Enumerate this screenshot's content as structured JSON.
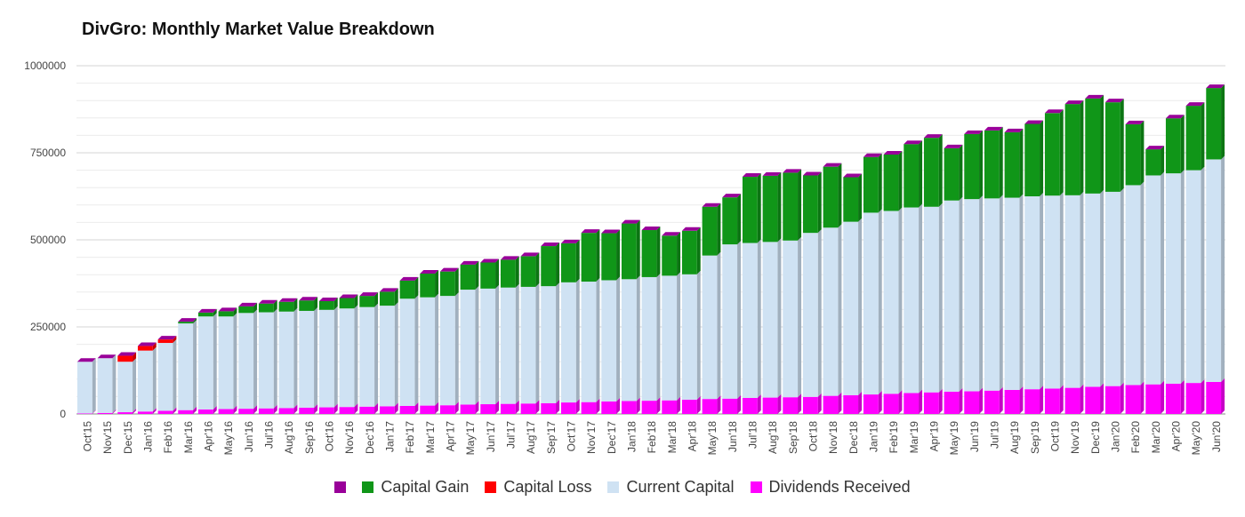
{
  "chart_data": {
    "type": "bar",
    "stacked": true,
    "title": "DivGro: Monthly Market Value Breakdown",
    "xlabel": "",
    "ylabel": "",
    "ylim": [
      0,
      1000000
    ],
    "yticks": [
      0,
      250000,
      500000,
      750000,
      1000000
    ],
    "ytick_labels": [
      "0",
      "250000",
      "500000",
      "750000",
      "1000000"
    ],
    "grid": true,
    "legend_position": "bottom",
    "categories": [
      "Oct'15",
      "Nov'15",
      "Dec'15",
      "Jan'16",
      "Feb'16",
      "Mar'16",
      "Apr'16",
      "May'16",
      "Jun'16",
      "Jul'16",
      "Aug'16",
      "Sep'16",
      "Oct'16",
      "Nov'16",
      "Dec'16",
      "Jan'17",
      "Feb'17",
      "Mar'17",
      "Apr'17",
      "May'17",
      "Jun'17",
      "Jul'17",
      "Aug'17",
      "Sep'17",
      "Oct'17",
      "Nov'17",
      "Dec'17",
      "Jan'18",
      "Feb'18",
      "Mar'18",
      "Apr'18",
      "May'18",
      "Jun'18",
      "Jul'18",
      "Aug'18",
      "Sep'18",
      "Oct'18",
      "Nov'18",
      "Dec'18",
      "Jan'19",
      "Feb'19",
      "Mar'19",
      "Apr'19",
      "May'19",
      "Jun'19",
      "Jul'19",
      "Aug'19",
      "Sep'19",
      "Oct'19",
      "Nov'19",
      "Dec'19",
      "Jan'20",
      "Feb'20",
      "Mar'20",
      "Apr'20",
      "May'20",
      "Jun'20"
    ],
    "series": [
      {
        "name": "Dividends Received",
        "color": "#ff00ff",
        "values": [
          1500,
          3000,
          5000,
          7000,
          9000,
          11000,
          13000,
          14000,
          15000,
          16000,
          17000,
          18000,
          19000,
          20000,
          21000,
          22000,
          23000,
          24000,
          25000,
          27000,
          28000,
          29000,
          30000,
          31000,
          33000,
          34000,
          36000,
          37000,
          38000,
          39000,
          41000,
          43000,
          44000,
          46000,
          47000,
          48000,
          49000,
          52000,
          54000,
          56000,
          58000,
          60000,
          62000,
          64000,
          65000,
          67000,
          69000,
          71000,
          73000,
          75000,
          78000,
          80000,
          83000,
          85000,
          87000,
          89000,
          92000
        ]
      },
      {
        "name": "Current Capital",
        "color": "#cfe2f3",
        "values": [
          148500,
          157000,
          145000,
          175000,
          195000,
          249000,
          267000,
          266000,
          275000,
          276000,
          277000,
          278000,
          280000,
          283000,
          286000,
          289000,
          308000,
          311000,
          314000,
          330000,
          332000,
          334000,
          335000,
          336000,
          345000,
          346000,
          348000,
          350000,
          355000,
          358000,
          360000,
          412000,
          443000,
          445000,
          447000,
          450000,
          471000,
          483000,
          498000,
          522000,
          525000,
          533000,
          533000,
          549000,
          552000,
          552000,
          552000,
          554000,
          554000,
          553000,
          555000,
          558000,
          574000,
          600000,
          604000,
          611000,
          639000
        ]
      },
      {
        "name": "Capital Loss",
        "color": "#ff0000",
        "values": [
          0,
          0,
          17000,
          13000,
          10000,
          0,
          0,
          0,
          0,
          0,
          0,
          0,
          0,
          0,
          0,
          0,
          0,
          0,
          0,
          0,
          0,
          0,
          0,
          0,
          0,
          0,
          0,
          0,
          0,
          0,
          0,
          0,
          0,
          0,
          0,
          0,
          0,
          0,
          0,
          0,
          0,
          0,
          0,
          0,
          0,
          0,
          0,
          0,
          0,
          0,
          0,
          0,
          0,
          0,
          0,
          0,
          0
        ]
      },
      {
        "name": "Capital Gain",
        "color": "#109618",
        "values": [
          0,
          0,
          0,
          0,
          0,
          5000,
          11000,
          15000,
          19000,
          25000,
          28000,
          30000,
          25000,
          30000,
          32000,
          40000,
          52000,
          68000,
          70000,
          72000,
          75000,
          80000,
          88000,
          115000,
          112000,
          140000,
          135000,
          160000,
          135000,
          115000,
          125000,
          140000,
          135000,
          190000,
          190000,
          195000,
          165000,
          175000,
          128000,
          160000,
          162000,
          182000,
          198000,
          150000,
          187000,
          195000,
          188000,
          208000,
          237000,
          262000,
          273000,
          257000,
          175000,
          75000,
          158000,
          185000,
          205000
        ]
      },
      {
        "name": "",
        "color": "#990099",
        "values": [
          0,
          0,
          0,
          0,
          0,
          0,
          0,
          0,
          0,
          0,
          0,
          0,
          0,
          0,
          0,
          0,
          0,
          0,
          0,
          0,
          0,
          0,
          0,
          0,
          0,
          0,
          0,
          0,
          0,
          0,
          0,
          0,
          0,
          0,
          0,
          0,
          0,
          0,
          0,
          0,
          0,
          0,
          0,
          0,
          0,
          0,
          0,
          0,
          0,
          0,
          0,
          0,
          0,
          0,
          0,
          0,
          0
        ]
      }
    ],
    "legend_order": [
      4,
      3,
      2,
      1,
      0
    ]
  }
}
